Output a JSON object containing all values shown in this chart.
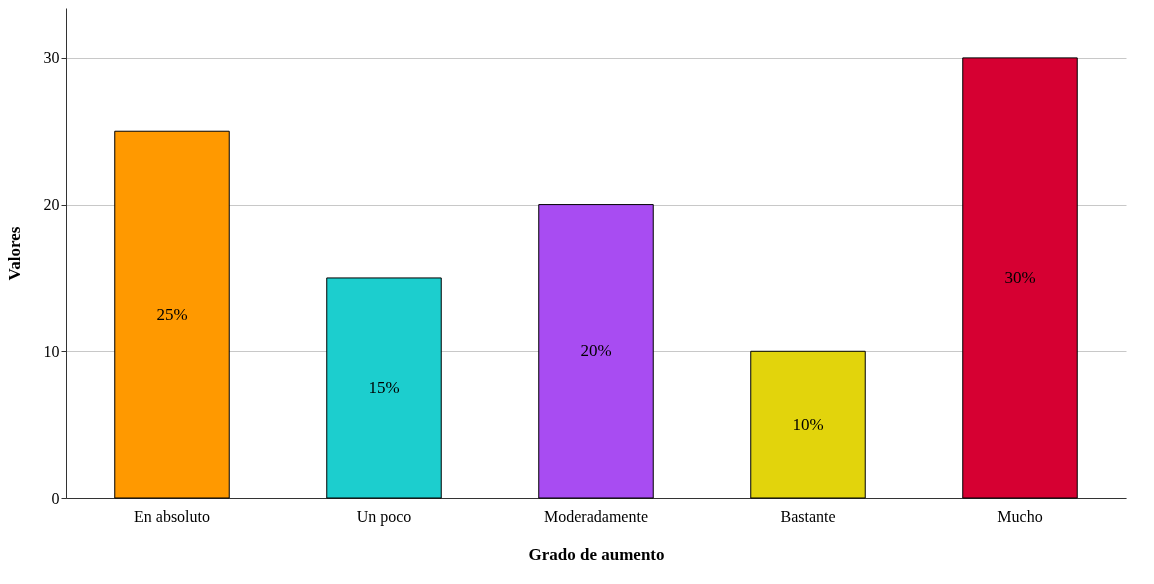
{
  "chart_data": {
    "type": "bar",
    "xlabel": "Grado de aumento",
    "ylabel": "Valores",
    "categories": [
      "En absoluto",
      "Un poco",
      "Moderadamente",
      "Bastante",
      "Mucho"
    ],
    "values": [
      25,
      15,
      20,
      10,
      30
    ],
    "colors": [
      "#ff9900",
      "#1ccece",
      "#a84cf2",
      "#e2d40c",
      "#d60032"
    ],
    "value_labels": [
      "25%",
      "15%",
      "20%",
      "10%",
      "30%"
    ],
    "ylim": [
      0,
      33.4
    ],
    "yticks": [
      0,
      10,
      20,
      30
    ],
    "grid": "y"
  }
}
